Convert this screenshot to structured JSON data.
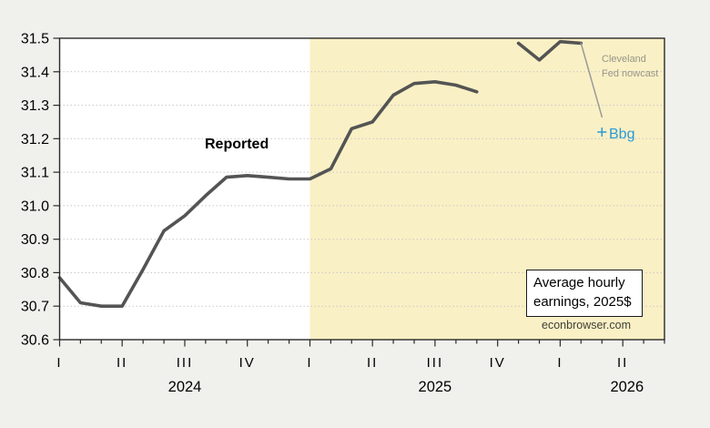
{
  "styles": {
    "background": "#f0f0ed",
    "plot_background": "#ffffff",
    "frame_color": "#2a2a2a",
    "grid_color": "#c8c8c8",
    "shade_color": "#faf0c5",
    "reported_line_color": "#545454",
    "nowcast_line_color": "#9a9a9a",
    "nowcast_text_color": "#96968a",
    "bbg_color": "#2b9bd7",
    "source_color": "#3f3f38",
    "box_border_color": "#1a1a1a",
    "text_color": "#000000"
  },
  "labels": {
    "reported": "Reported",
    "nowcast_line1": "Cleveland",
    "nowcast_line2": "Fed nowcast",
    "bbg": "Bbg",
    "box_line1": "Average hourly",
    "box_line2": "earnings, 2025$",
    "source": "econbrowser.com"
  },
  "chart_data": {
    "type": "line",
    "title": "Average hourly earnings, 2025$",
    "source": "econbrowser.com",
    "ylim": [
      30.6,
      31.5
    ],
    "y_ticks": [
      30.6,
      30.7,
      30.8,
      30.9,
      31.0,
      31.1,
      31.2,
      31.3,
      31.4,
      31.5
    ],
    "grid": "dotted horizontal",
    "x_axis": {
      "start_month": "2024-01",
      "end_month": "2026-06",
      "months_total": 29,
      "tick_unit": "month",
      "major_tick_every_months": 3,
      "quarter_labels": [
        "I",
        "II",
        "III",
        "IV"
      ],
      "years": [
        {
          "label": "2024",
          "center_month": 6
        },
        {
          "label": "2025",
          "center_month": 18
        },
        {
          "label": "2026",
          "center_month": 27.2
        }
      ]
    },
    "shading": {
      "start_month": "2025-01"
    },
    "series": [
      {
        "id": "reported",
        "name": "Reported",
        "color": "#545454",
        "line_width": 3.6,
        "start_month": "2024-01",
        "values": [
          30.785,
          30.71,
          30.7,
          30.7,
          30.81,
          30.925,
          30.97,
          31.03,
          31.085,
          31.09,
          31.085,
          31.08,
          31.08,
          31.11,
          31.23,
          31.25,
          31.33,
          31.365,
          31.37,
          31.36,
          31.34
        ]
      },
      {
        "id": "reported-post-gap",
        "name": "Reported (after data gap)",
        "color": "#545454",
        "line_width": 3.6,
        "start_month": "2025-11",
        "values": [
          31.485,
          31.435,
          31.49,
          31.485
        ]
      },
      {
        "id": "cleveland-nowcast",
        "name": "Cleveland Fed nowcast",
        "color": "#9a9a9a",
        "line_width": 1.5,
        "start_month": "2026-02",
        "values": [
          31.485,
          31.265
        ]
      }
    ],
    "points": [
      {
        "id": "bbg",
        "name": "Bbg",
        "marker": "+",
        "color": "#2b9bd7",
        "month": "2026-03",
        "value": 31.22
      }
    ]
  }
}
